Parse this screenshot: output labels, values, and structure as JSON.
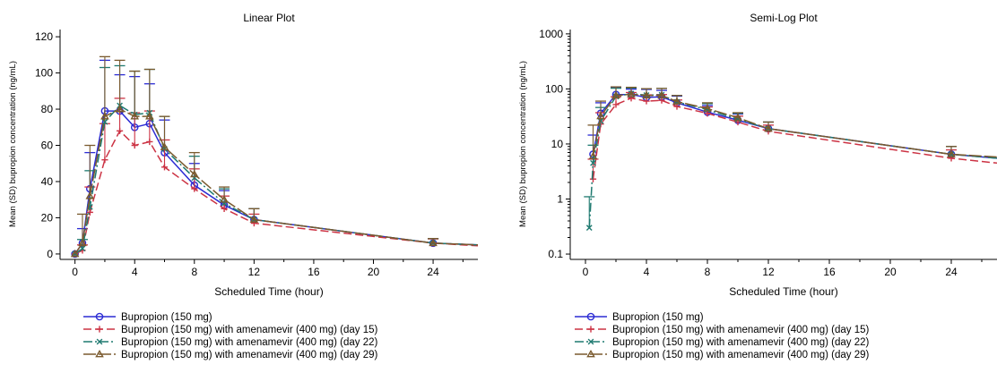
{
  "colors": {
    "series_a": "#2b2bd4",
    "series_b": "#cc3344",
    "series_c": "#1f7a70",
    "series_d": "#7a5a2e"
  },
  "chart_data": [
    {
      "type": "line",
      "title": "Linear Plot",
      "xlabel": "Scheduled Time (hour)",
      "ylabel": "Mean (SD) bupropion concentration (ng/mL)",
      "xlim": [
        -1,
        27
      ],
      "ylim": [
        -3,
        124
      ],
      "yscale": "linear",
      "xticks": [
        "0",
        "4",
        "8",
        "12",
        "16",
        "20",
        "24"
      ],
      "yticks": [
        "0",
        "20",
        "40",
        "60",
        "80",
        "100",
        "120"
      ],
      "grid": false,
      "legend_placement": "bottom",
      "series": [
        {
          "name": "Bupropion (150 mg)",
          "marker": "circle",
          "dash": "solid",
          "color_key": "series_a",
          "x": [
            0,
            0.5,
            1,
            2,
            3,
            4,
            5,
            6,
            8,
            10,
            12,
            24,
            27
          ],
          "y": [
            0,
            6,
            36,
            79,
            79,
            70,
            72,
            56,
            38,
            27,
            19,
            6,
            5
          ],
          "sd": [
            0,
            8,
            20,
            28,
            20,
            28,
            22,
            18,
            12,
            8,
            6,
            2.5,
            0
          ]
        },
        {
          "name": "Bupropion (150 mg) with amenamevir (400 mg) (day 15)",
          "marker": "plus",
          "dash": "dashed",
          "color_key": "series_b",
          "x": [
            0,
            0.5,
            1,
            2,
            3,
            4,
            5,
            6,
            8,
            10,
            12,
            24,
            27
          ],
          "y": [
            0,
            2,
            23,
            52,
            68,
            60,
            62,
            48,
            36,
            25,
            17,
            6,
            4.5
          ],
          "sd": [
            0,
            3,
            14,
            20,
            18,
            18,
            17,
            15,
            11,
            7,
            5,
            2.3,
            0
          ]
        },
        {
          "name": "Bupropion (150 mg) with amenamevir (400 mg) (day 22)",
          "marker": "x",
          "dash": "dashdot",
          "color_key": "series_c",
          "x": [
            0,
            0.5,
            1,
            2,
            3,
            4,
            5,
            6,
            8,
            10,
            12,
            24,
            27
          ],
          "y": [
            0,
            3,
            26,
            73,
            82,
            77,
            78,
            58,
            42,
            28,
            19,
            6,
            5
          ],
          "sd": [
            0,
            5,
            20,
            30,
            22,
            24,
            24,
            18,
            12,
            8,
            6,
            2.5,
            0
          ]
        },
        {
          "name": "Bupropion (150 mg) with amenamevir (400 mg) (day 29)",
          "marker": "triangle",
          "dash": "longdash",
          "color_key": "series_d",
          "x": [
            0,
            0.5,
            1,
            2,
            3,
            4,
            5,
            6,
            8,
            10,
            12,
            24,
            27
          ],
          "y": [
            0,
            6,
            32,
            76,
            80,
            76,
            76,
            59,
            44,
            30,
            19,
            6,
            5
          ],
          "sd": [
            0,
            16,
            28,
            33,
            27,
            25,
            26,
            17,
            12,
            7,
            6,
            2.5,
            0
          ]
        }
      ]
    },
    {
      "type": "line",
      "title": "Semi-Log Plot",
      "xlabel": "Scheduled Time (hour)",
      "ylabel": "Mean (SD) bupropion concentration (ng/mL)",
      "xlim": [
        -1,
        27
      ],
      "ylim": [
        0.08,
        1200
      ],
      "yscale": "log",
      "xticks": [
        "0",
        "4",
        "8",
        "12",
        "16",
        "20",
        "24"
      ],
      "yticks": [
        "0.1",
        "1",
        "10",
        "100",
        "1000"
      ],
      "grid": false,
      "legend_placement": "bottom",
      "series": [
        {
          "name": "Bupropion (150 mg)",
          "marker": "circle",
          "dash": "solid",
          "color_key": "series_a",
          "x": [
            0.5,
            1,
            2,
            3,
            4,
            5,
            6,
            8,
            10,
            12,
            24,
            27
          ],
          "y": [
            6.5,
            36,
            79,
            79,
            70,
            72,
            56,
            38,
            27,
            19,
            6.5,
            5.5
          ],
          "sd": [
            8,
            20,
            28,
            20,
            28,
            22,
            18,
            12,
            8,
            6,
            2.5,
            0
          ]
        },
        {
          "name": "Bupropion (150 mg) with amenamevir (400 mg) (day 15)",
          "marker": "plus",
          "dash": "dashed",
          "color_key": "series_b",
          "x": [
            0.5,
            1,
            2,
            3,
            4,
            5,
            6,
            8,
            10,
            12,
            24,
            27
          ],
          "y": [
            2.3,
            23,
            52,
            68,
            60,
            62,
            48,
            36,
            25,
            17,
            5.5,
            4.5
          ],
          "sd": [
            3,
            14,
            20,
            18,
            18,
            17,
            15,
            11,
            7,
            5,
            2.3,
            0
          ]
        },
        {
          "name": "Bupropion (150 mg) with amenamevir (400 mg) (day 22)",
          "marker": "x",
          "dash": "dashdot",
          "color_key": "series_c",
          "x": [
            0.25,
            0.5,
            1,
            2,
            3,
            4,
            5,
            6,
            8,
            10,
            12,
            24,
            27
          ],
          "y": [
            0.3,
            4.5,
            26,
            73,
            82,
            77,
            78,
            58,
            42,
            28,
            19,
            6.5,
            5.5
          ],
          "sd": [
            0.8,
            5,
            20,
            30,
            22,
            24,
            24,
            18,
            12,
            8,
            6,
            2.5,
            0
          ]
        },
        {
          "name": "Bupropion (150 mg) with amenamevir (400 mg) (day 29)",
          "marker": "triangle",
          "dash": "longdash",
          "color_key": "series_d",
          "x": [
            0.5,
            1,
            2,
            3,
            4,
            5,
            6,
            8,
            10,
            12,
            24,
            27
          ],
          "y": [
            6,
            32,
            76,
            80,
            76,
            76,
            59,
            44,
            30,
            19,
            6.5,
            5.8
          ],
          "sd": [
            16,
            28,
            33,
            27,
            25,
            26,
            17,
            12,
            7,
            6,
            2.5,
            0
          ]
        }
      ]
    }
  ]
}
